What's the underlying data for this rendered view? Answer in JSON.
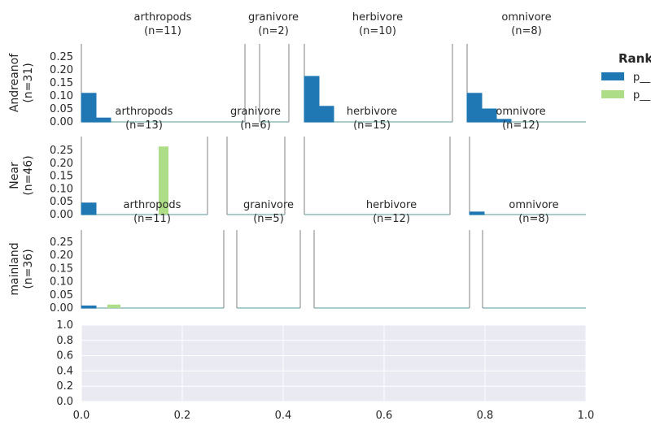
{
  "chart_data": {
    "type": "bar",
    "subplots_ylim": [
      0,
      0.29
    ],
    "y_ticks": [
      "0.00",
      "0.05",
      "0.10",
      "0.15",
      "0.20",
      "0.25"
    ],
    "rows": [
      {
        "label": [
          "Andreanof",
          "(n=31)"
        ],
        "groups": [
          {
            "name": "arthropods",
            "count": "(n=11)",
            "values_p1": [
              0.11,
              0.015
            ],
            "values_p2": []
          },
          {
            "name": "granivore",
            "count": "(n=2)",
            "values_p1": [],
            "values_p2": []
          },
          {
            "name": "herbivore",
            "count": "(n=10)",
            "values_p1": [
              0.175,
              0.06
            ],
            "values_p2": []
          },
          {
            "name": "omnivore",
            "count": "(n=8)",
            "values_p1": [
              0.11,
              0.05,
              0.01
            ],
            "values_p2": []
          }
        ]
      },
      {
        "label": [
          "Near",
          "(n=46)"
        ],
        "groups": [
          {
            "name": "arthropods",
            "count": "(n=13)",
            "values_p1": [
              0.045
            ],
            "values_p2": [
              0.265
            ]
          },
          {
            "name": "granivore",
            "count": "(n=6)",
            "values_p1": [],
            "values_p2": []
          },
          {
            "name": "herbivore",
            "count": "(n=15)",
            "values_p1": [],
            "values_p2": []
          },
          {
            "name": "omnivore",
            "count": "(n=12)",
            "values_p1": [
              0.01
            ],
            "values_p2": []
          }
        ]
      },
      {
        "label": [
          "mainland",
          "(n=36)"
        ],
        "groups": [
          {
            "name": "arthropods",
            "count": "(n=11)",
            "values_p1": [
              0.008
            ],
            "values_p2": [
              0.013
            ]
          },
          {
            "name": "granivore",
            "count": "(n=5)",
            "values_p1": [],
            "values_p2": []
          },
          {
            "name": "herbivore",
            "count": "(n=12)",
            "values_p1": [],
            "values_p2": []
          },
          {
            "name": "omnivore",
            "count": "(n=8)",
            "values_p1": [],
            "values_p2": []
          }
        ]
      }
    ],
    "legend": {
      "title": "Rank",
      "entries": [
        {
          "label": "p__",
          "color": "#1f77b4"
        },
        {
          "label": "p__",
          "color": "#aedd87"
        }
      ]
    },
    "bottom_axis": {
      "xlim": [
        0,
        1
      ],
      "ylim": [
        0,
        1
      ],
      "x_ticks": [
        "0.0",
        "0.2",
        "0.4",
        "0.6",
        "0.8",
        "1.0"
      ],
      "y_ticks": [
        "0.0",
        "0.2",
        "0.4",
        "0.6",
        "0.8",
        "1.0"
      ],
      "grid": true
    },
    "colors": {
      "series1": "#1f77b4",
      "series2": "#aedd87",
      "baseline": "#8fbcbb",
      "panel_bg": "#eaeaf2"
    }
  }
}
